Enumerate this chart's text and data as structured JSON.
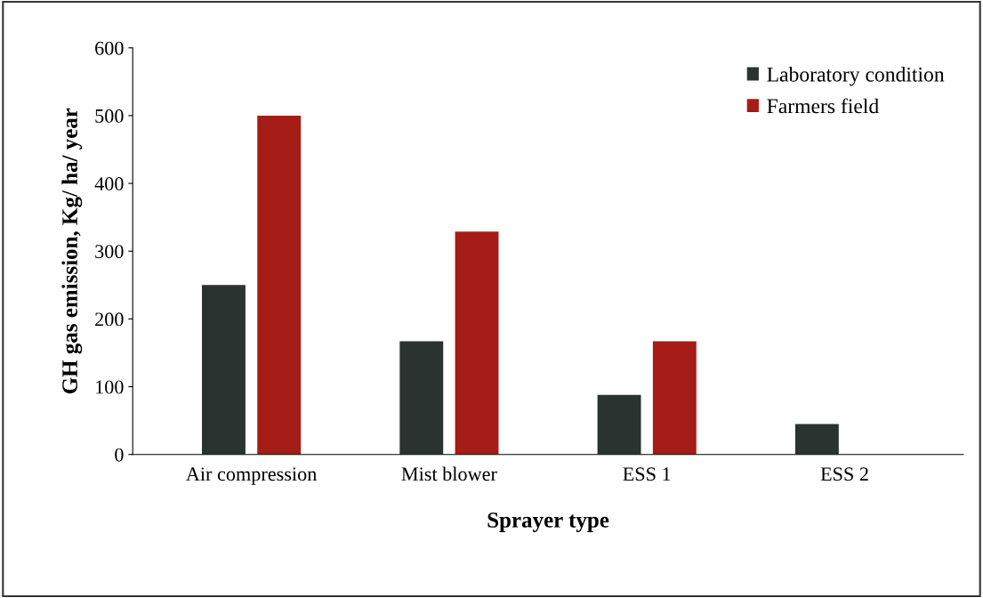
{
  "chart_data": {
    "type": "bar",
    "xlabel": "Sprayer type",
    "ylabel": "GH gas emission, Kg/ ha/ year",
    "categories": [
      "Air compression",
      "Mist blower",
      "ESS 1",
      "ESS 2"
    ],
    "series": [
      {
        "name": "Laboratory condition",
        "color": "#2b3330",
        "values": [
          250,
          167,
          88,
          45
        ]
      },
      {
        "name": "Farmers field",
        "color": "#a51d16",
        "values": [
          500,
          329,
          167,
          null
        ]
      }
    ],
    "ylim": [
      0,
      600
    ],
    "yticks": [
      0,
      100,
      200,
      300,
      400,
      500,
      600
    ],
    "grid": false,
    "legend": "top right"
  }
}
